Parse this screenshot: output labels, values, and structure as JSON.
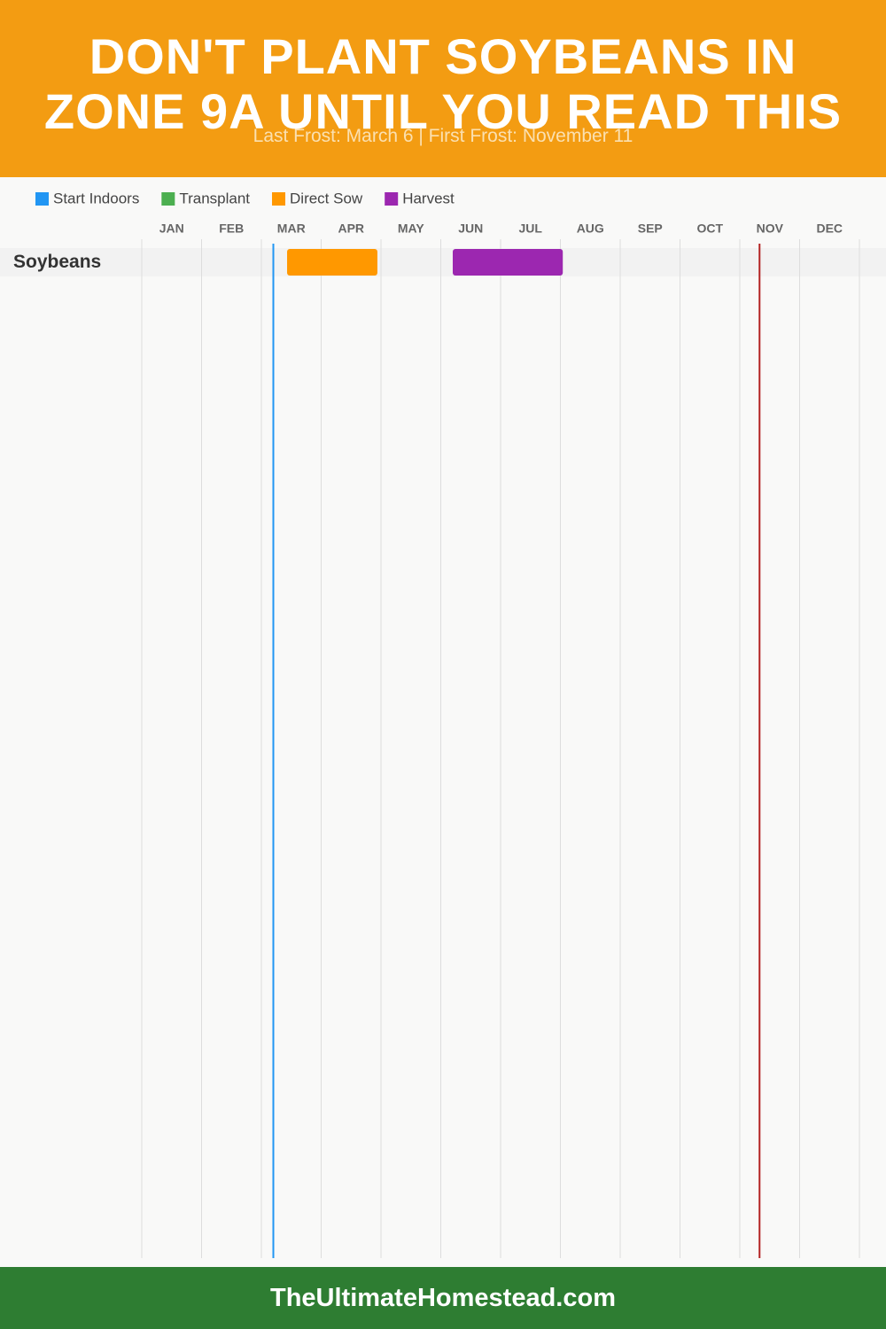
{
  "chart_data": {
    "type": "gantt",
    "title": "DON'T PLANT SOYBEANS IN ZONE 9A UNTIL YOU READ THIS",
    "subtitle": "Last Frost: March 6 | First Frost: November 11",
    "categories": [
      "JAN",
      "FEB",
      "MAR",
      "APR",
      "MAY",
      "JUN",
      "JUL",
      "AUG",
      "SEP",
      "OCT",
      "NOV",
      "DEC"
    ],
    "xlim": [
      0,
      12
    ],
    "xticks": [
      0,
      1,
      2,
      3,
      4,
      5,
      6,
      7,
      8,
      9,
      10,
      11,
      12
    ],
    "grid": true,
    "rows": [
      "Soybeans"
    ],
    "series": [
      {
        "name": "Start Indoors",
        "color": "#2196f3",
        "start": [
          null
        ],
        "end": [
          null
        ]
      },
      {
        "name": "Transplant",
        "color": "#4caf50",
        "start": [
          null
        ],
        "end": [
          null
        ]
      },
      {
        "name": "Direct Sow",
        "color": "#ff9800",
        "start": [
          2.43
        ],
        "end": [
          3.94
        ]
      },
      {
        "name": "Harvest",
        "color": "#9c27b0",
        "start": [
          5.2
        ],
        "end": [
          7.04
        ]
      }
    ],
    "markers": [
      {
        "value": 2.2,
        "color": "#2196f3"
      },
      {
        "value": 10.33,
        "color": "#b22222"
      }
    ]
  },
  "footer": "TheUltimateHomestead.com"
}
